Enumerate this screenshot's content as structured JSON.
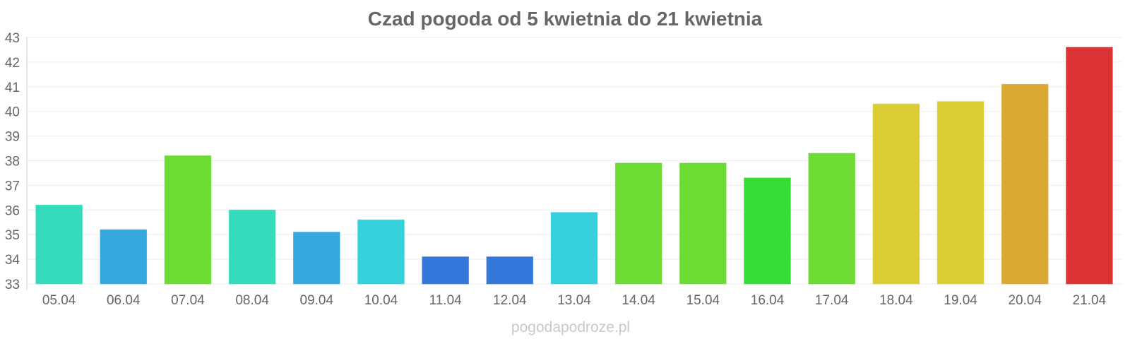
{
  "chart_data": {
    "type": "bar",
    "title": "Czad pogoda od 5 kwietnia do 21 kwietnia",
    "xlabel": "",
    "ylabel": "",
    "categories": [
      "05.04",
      "06.04",
      "07.04",
      "08.04",
      "09.04",
      "10.04",
      "11.04",
      "12.04",
      "13.04",
      "14.04",
      "15.04",
      "16.04",
      "17.04",
      "18.04",
      "19.04",
      "20.04",
      "21.04"
    ],
    "values": [
      36.2,
      35.2,
      38.2,
      36.0,
      35.1,
      35.6,
      34.1,
      34.1,
      35.9,
      37.9,
      37.9,
      37.3,
      38.3,
      40.3,
      40.4,
      41.1,
      42.6
    ],
    "colors": [
      "#34dcbc",
      "#34a8dc",
      "#6cdc34",
      "#34dcbc",
      "#34a8dc",
      "#34d0dc",
      "#3478dc",
      "#3478dc",
      "#34d0dc",
      "#6cdc34",
      "#6cdc34",
      "#34dc34",
      "#6cdc34",
      "#dccc34",
      "#dccc34",
      "#dca834",
      "#dc3434"
    ],
    "ylim": [
      33,
      43
    ],
    "yticks": [
      33,
      34,
      35,
      36,
      37,
      38,
      39,
      40,
      41,
      42,
      43
    ],
    "grid": true,
    "legend": "none"
  },
  "footer": {
    "watermark": "pogodapodroze.pl"
  }
}
